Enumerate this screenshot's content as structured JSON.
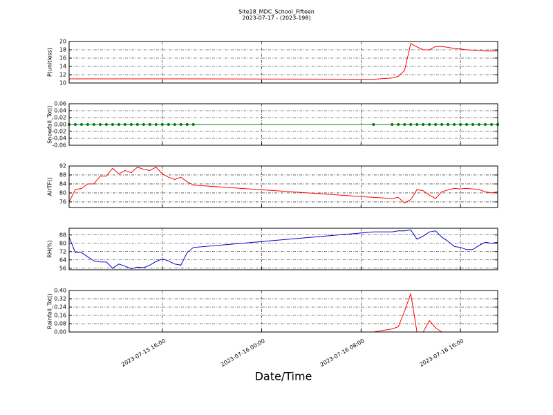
{
  "chart_data": {
    "type": "line",
    "title": "Site18_MDC_School_Fifteen",
    "subtitle": "2023-07-17 - (2023-198)",
    "xlabel": "Date/Time",
    "grid": true,
    "xlim": [
      "2023-07-15 08:30",
      "2023-07-16 19:00"
    ],
    "xticks": [
      "2023-07-15 16:00",
      "2023-07-16 00:00",
      "2023-07-16 08:00",
      "2023-07-16 16:00"
    ],
    "x": [
      "2023-07-15 08:30",
      "2023-07-15 09:00",
      "2023-07-15 09:30",
      "2023-07-15 10:00",
      "2023-07-15 10:30",
      "2023-07-15 11:00",
      "2023-07-15 11:30",
      "2023-07-15 12:00",
      "2023-07-15 12:30",
      "2023-07-15 13:00",
      "2023-07-15 13:30",
      "2023-07-15 14:00",
      "2023-07-15 14:30",
      "2023-07-15 15:00",
      "2023-07-15 15:30",
      "2023-07-15 16:00",
      "2023-07-15 16:30",
      "2023-07-15 17:00",
      "2023-07-15 17:30",
      "2023-07-15 18:00",
      "2023-07-15 18:30",
      "2023-07-16 09:00",
      "2023-07-16 10:30",
      "2023-07-16 11:00",
      "2023-07-16 11:30",
      "2023-07-16 12:00",
      "2023-07-16 12:30",
      "2023-07-16 13:00",
      "2023-07-16 13:30",
      "2023-07-16 14:00",
      "2023-07-16 14:30",
      "2023-07-16 15:00",
      "2023-07-16 15:30",
      "2023-07-16 16:00",
      "2023-07-16 16:30",
      "2023-07-16 17:00",
      "2023-07-16 17:30",
      "2023-07-16 18:00",
      "2023-07-16 18:30",
      "2023-07-16 19:00"
    ],
    "panels": [
      {
        "ylabel": "P(unitless)",
        "ylim": [
          10,
          20
        ],
        "yticks": [
          10,
          12,
          14,
          16,
          18,
          20
        ],
        "series": [
          {
            "color": "#ff0000",
            "values": [
              11,
              11,
              11,
              11,
              11,
              11,
              11,
              11,
              11,
              11,
              11,
              11,
              11,
              11,
              11,
              11,
              11,
              11,
              11,
              11,
              11,
              10.9,
              11.2,
              11.6,
              13,
              19.5,
              18.7,
              18,
              18,
              18.8,
              18.8,
              18.6,
              18.3,
              18.2,
              18,
              17.9,
              17.8,
              17.7,
              17.7,
              17.7
            ]
          }
        ]
      },
      {
        "ylabel": "Snowfall_Tot()",
        "ylim": [
          -0.06,
          0.06
        ],
        "yticks": [
          {
            "value": -0.06,
            "label": "-0.06"
          },
          {
            "value": -0.04,
            "label": "-0.04"
          },
          {
            "value": -0.02,
            "label": "-0.02"
          },
          {
            "value": 0,
            "label": "0.00"
          },
          {
            "value": 0.02,
            "label": "0.02"
          },
          {
            "value": 0.04,
            "label": "0.04"
          },
          {
            "value": 0.06,
            "label": "0.06"
          }
        ],
        "series": [
          {
            "color": "#008000",
            "marker": "o",
            "values": [
              0,
              0,
              0,
              0,
              0,
              0,
              0,
              0,
              0,
              0,
              0,
              0,
              0,
              0,
              0,
              0,
              0,
              0,
              0,
              0,
              0,
              0,
              0,
              0,
              0,
              0,
              0,
              0,
              0,
              0,
              0,
              0,
              0,
              0,
              0,
              0,
              0,
              0,
              0,
              0
            ]
          }
        ]
      },
      {
        "ylabel": "AirTF()",
        "ylim": [
          73.5,
          92
        ],
        "yticks": [
          76,
          80,
          84,
          88,
          92
        ],
        "series": [
          {
            "color": "#ff0000",
            "values": [
              76,
              81.5,
              82,
              84,
              84,
              87.5,
              87.5,
              91,
              88.5,
              90,
              89,
              91.5,
              90.5,
              90,
              91.5,
              88.5,
              87,
              86,
              87,
              85,
              83.5,
              78,
              77.5,
              78,
              75.5,
              77,
              81.5,
              81,
              79,
              77.5,
              80.5,
              81.3,
              82,
              81.8,
              82,
              81.8,
              81.5,
              80.5,
              80,
              80.5
            ]
          }
        ]
      },
      {
        "ylabel": "RH(%)",
        "ylim": [
          54.5,
          94.5
        ],
        "yticks": [
          56,
          64,
          72,
          80,
          88
        ],
        "series": [
          {
            "color": "#0000cc",
            "values": [
              86,
              71,
              71,
              67,
              63,
              62,
              62,
              56,
              60,
              58,
              55.5,
              57,
              56.5,
              59,
              62.5,
              65,
              63,
              60,
              59,
              71,
              76,
              91,
              91,
              92,
              92,
              93,
              84,
              87,
              91,
              92,
              86,
              82,
              77,
              76,
              74,
              74,
              78,
              81,
              80,
              81
            ]
          }
        ]
      },
      {
        "ylabel": "Rainfall_Tot()",
        "ylim": [
          0,
          0.4
        ],
        "yticks": [
          {
            "value": 0,
            "label": "0.00"
          },
          {
            "value": 0.08,
            "label": "0.08"
          },
          {
            "value": 0.16,
            "label": "0.16"
          },
          {
            "value": 0.24,
            "label": "0.24"
          },
          {
            "value": 0.32,
            "label": "0.32"
          },
          {
            "value": 0.4,
            "label": "0.40"
          }
        ],
        "series": [
          {
            "color": "#ff0000",
            "values": [
              0,
              0,
              0,
              0,
              0,
              0,
              0,
              0,
              0,
              0,
              0,
              0,
              0,
              0,
              0,
              0,
              0,
              0,
              0,
              0,
              0,
              0,
              0.03,
              0.05,
              0.2,
              0.37,
              0,
              0,
              0.11,
              0.04,
              0,
              0,
              0,
              0,
              0,
              0,
              0,
              0,
              0,
              0
            ]
          }
        ]
      }
    ]
  }
}
